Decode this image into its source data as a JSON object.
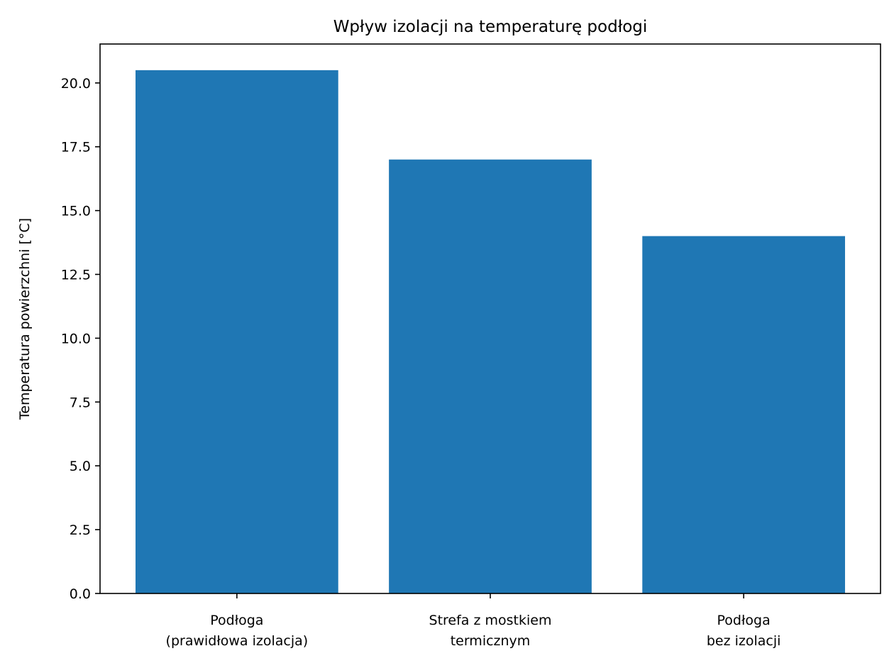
{
  "chart_data": {
    "type": "bar",
    "title": "Wpływ izolacji na temperaturę podłogi",
    "xlabel": "",
    "ylabel": "Temperatura powierzchni [°C]",
    "categories": [
      [
        "Podłoga",
        "(prawidłowa izolacja)"
      ],
      [
        "Strefa z mostkiem",
        "termicznym"
      ],
      [
        "Podłoga",
        "bez izolacji"
      ]
    ],
    "values": [
      20.5,
      17.0,
      14.0
    ],
    "ylim": [
      0,
      21.525
    ],
    "yticks": [
      "0.0",
      "2.5",
      "5.0",
      "7.5",
      "10.0",
      "12.5",
      "15.0",
      "17.5",
      "20.0"
    ],
    "grid": false,
    "bar_color": "#1f77b4"
  }
}
